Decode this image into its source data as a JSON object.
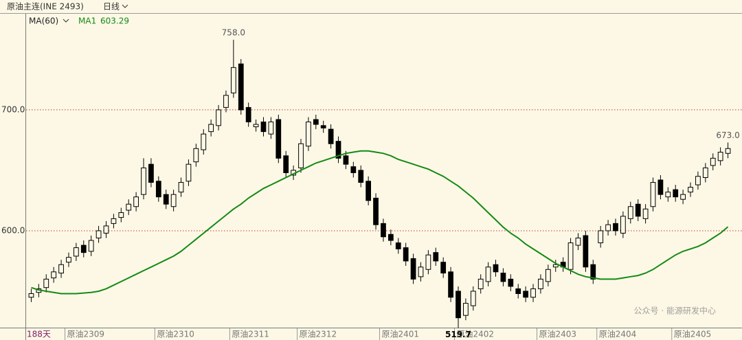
{
  "chart_data": {
    "type": "candlestick",
    "title": "原油主连(INE 2493)",
    "period": "日线",
    "indicator": "MA(60)",
    "ma_name": "MA1",
    "days": "188天",
    "watermark": "公众号 · 能源研发中心",
    "categories": [
      null,
      null,
      null,
      null,
      null,
      "原油2309",
      null,
      null,
      null,
      null,
      null,
      null,
      null,
      null,
      null,
      null,
      null,
      "原油2310",
      null,
      null,
      null,
      null,
      null,
      null,
      null,
      null,
      null,
      "原油2311",
      null,
      null,
      null,
      null,
      null,
      null,
      null,
      null,
      "原油2312",
      null,
      null,
      null,
      null,
      null,
      null,
      null,
      null,
      null,
      null,
      "原油2401",
      null,
      null,
      null,
      null,
      null,
      null,
      null,
      null,
      null,
      "原油2402",
      null,
      null,
      null,
      null,
      null,
      null,
      null,
      null,
      null,
      null,
      "原油2403",
      null,
      null,
      null,
      null,
      null,
      null,
      null,
      "原油2404",
      null,
      null,
      null,
      null,
      null,
      null,
      null,
      null,
      null,
      "原油2405",
      null,
      null,
      null,
      null,
      null,
      null,
      null
    ],
    "open": [
      545,
      549,
      553,
      561,
      565,
      574,
      579,
      588,
      583,
      594,
      598,
      606,
      611,
      617,
      620,
      630,
      655,
      641,
      630,
      620,
      632,
      641,
      657,
      667,
      682,
      687,
      702,
      714,
      738,
      702,
      686,
      690,
      680,
      692,
      662,
      646,
      652,
      670,
      692,
      687,
      684,
      674,
      662,
      653,
      650,
      641,
      627,
      606,
      597,
      590,
      586,
      577,
      562,
      568,
      582,
      574,
      566,
      550,
      530,
      538,
      552,
      558,
      572,
      565,
      560,
      552,
      550,
      545,
      552,
      558,
      570,
      574,
      568,
      588,
      596,
      572,
      590,
      600,
      606,
      598,
      610,
      622,
      610,
      620,
      642,
      628,
      634,
      626,
      632,
      638,
      644,
      654,
      658,
      664
    ],
    "high": [
      552,
      556,
      564,
      570,
      576,
      582,
      590,
      592,
      596,
      604,
      608,
      614,
      619,
      626,
      632,
      660,
      660,
      645,
      634,
      634,
      644,
      659,
      672,
      684,
      692,
      704,
      716,
      758,
      742,
      706,
      692,
      694,
      694,
      696,
      666,
      654,
      676,
      694,
      696,
      691,
      688,
      678,
      666,
      657,
      654,
      645,
      631,
      610,
      601,
      594,
      590,
      581,
      574,
      584,
      586,
      578,
      570,
      554,
      544,
      554,
      564,
      574,
      576,
      569,
      564,
      556,
      554,
      556,
      564,
      572,
      576,
      578,
      594,
      598,
      600,
      576,
      604,
      609,
      610,
      616,
      624,
      626,
      622,
      644,
      646,
      636,
      638,
      634,
      640,
      649,
      656,
      664,
      669,
      673
    ],
    "low": [
      541,
      545,
      549,
      557,
      561,
      570,
      575,
      578,
      579,
      590,
      594,
      602,
      607,
      613,
      616,
      626,
      636,
      624,
      618,
      616,
      628,
      637,
      653,
      663,
      678,
      683,
      698,
      710,
      696,
      686,
      682,
      678,
      676,
      656,
      644,
      642,
      648,
      666,
      684,
      681,
      668,
      656,
      651,
      644,
      636,
      621,
      601,
      591,
      588,
      581,
      571,
      556,
      558,
      564,
      571,
      561,
      541,
      519.7,
      526,
      534,
      548,
      554,
      562,
      554,
      550,
      544,
      541,
      541,
      548,
      554,
      566,
      566,
      564,
      584,
      566,
      556,
      586,
      596,
      596,
      594,
      606,
      608,
      606,
      616,
      626,
      624,
      624,
      622,
      628,
      634,
      640,
      650,
      654,
      660
    ],
    "close": [
      548,
      552,
      560,
      566,
      572,
      578,
      586,
      582,
      592,
      600,
      604,
      610,
      615,
      622,
      628,
      652,
      640,
      628,
      622,
      630,
      640,
      655,
      668,
      680,
      688,
      700,
      712,
      735,
      700,
      690,
      688,
      682,
      690,
      660,
      648,
      650,
      672,
      690,
      688,
      685,
      672,
      660,
      655,
      648,
      640,
      625,
      605,
      595,
      592,
      585,
      575,
      560,
      570,
      580,
      575,
      565,
      545,
      528,
      540,
      550,
      560,
      570,
      566,
      558,
      554,
      548,
      545,
      552,
      560,
      568,
      572,
      570,
      590,
      594,
      570,
      560,
      600,
      605,
      600,
      612,
      620,
      612,
      618,
      640,
      630,
      632,
      628,
      630,
      636,
      645,
      652,
      660,
      665,
      668
    ],
    "ma": {
      "color": "#138a13",
      "values": [
        553,
        551,
        550,
        549,
        548,
        548,
        548,
        548.5,
        549,
        550,
        552,
        555,
        558,
        561,
        564,
        567,
        570,
        573,
        576,
        579,
        583,
        588,
        593,
        598,
        603,
        608,
        613,
        618,
        622,
        627,
        631,
        635,
        638,
        641,
        644,
        647,
        650,
        653,
        656,
        658,
        660,
        662,
        664,
        665,
        666,
        666,
        665,
        664,
        662,
        659,
        657,
        655,
        653,
        651,
        648,
        645,
        641,
        637,
        632,
        627,
        621,
        615,
        609,
        603,
        598,
        594,
        589,
        585,
        581,
        577,
        573,
        570,
        567,
        564,
        562,
        561,
        560,
        560,
        560,
        561,
        562,
        563,
        565,
        568,
        572,
        576,
        580,
        583,
        585,
        587,
        590,
        594,
        598,
        603.29
      ]
    },
    "annotations": [
      {
        "value": 758,
        "label": "758.0"
      },
      {
        "value": 519.7,
        "label": "519.7"
      },
      {
        "value": 673,
        "label": "673.0"
      }
    ],
    "ylim": [
      519.3,
      779.5
    ],
    "yticks": [
      {
        "value": 600,
        "label": "600.0"
      },
      {
        "value": 700,
        "label": "700.0"
      }
    ],
    "grid_color": "#c0392b"
  }
}
